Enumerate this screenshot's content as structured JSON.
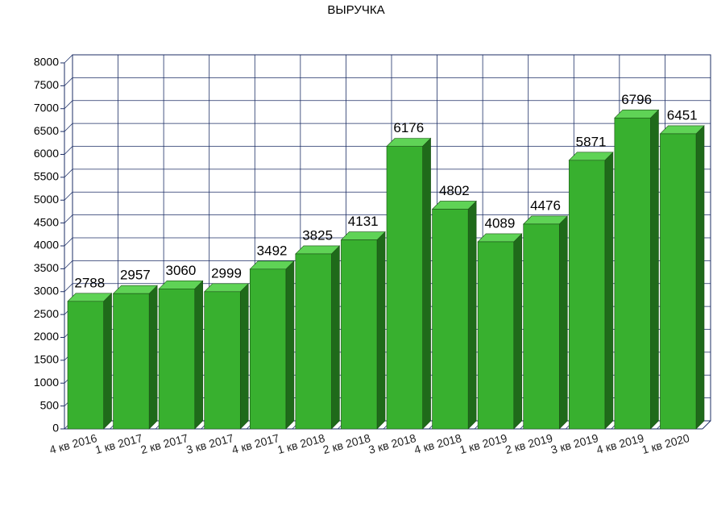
{
  "chart_data": {
    "type": "bar3d",
    "title": "ВЫРУЧКА",
    "categories": [
      "4 кв 2016",
      "1 кв 2017",
      "2 кв 2017",
      "3 кв 2017",
      "4 кв 2017",
      "1 кв 2018",
      "2 кв 2018",
      "3 кв 2018",
      "4 кв 2018",
      "1 кв 2019",
      "2 кв 2019",
      "3 кв 2019",
      "4 кв 2019",
      "1 кв 2020"
    ],
    "values": [
      2788,
      2957,
      3060,
      2999,
      3492,
      3825,
      4131,
      6176,
      4802,
      4089,
      4476,
      5871,
      6796,
      6451
    ],
    "color": "#38b02f",
    "ylim": [
      0,
      8000
    ],
    "yticks": [
      0,
      500,
      1000,
      1500,
      2000,
      2500,
      3000,
      3500,
      4000,
      4500,
      5000,
      5500,
      6000,
      6500,
      7000,
      7500,
      8000
    ],
    "grid": true
  }
}
